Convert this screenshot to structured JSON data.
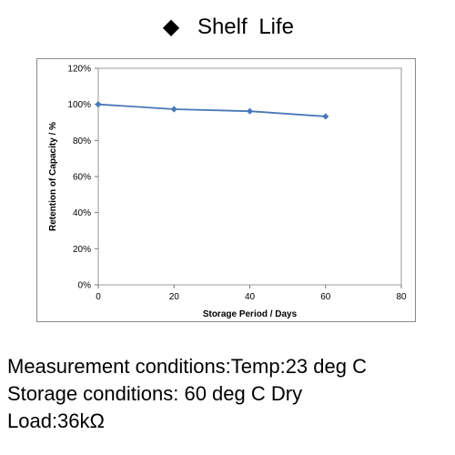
{
  "header": {
    "bullet": "◆",
    "title": "Shelf  Life"
  },
  "chart_data": {
    "type": "line",
    "title": "",
    "xlabel": "Storage Period / Days",
    "ylabel": "Retention of Capacity / %",
    "x": [
      0,
      20,
      40,
      60
    ],
    "series": [
      {
        "values": [
          100,
          97.3,
          96.2,
          93.3
        ],
        "color": "#4a78b8"
      }
    ],
    "xlim": [
      0,
      80
    ],
    "ylim": [
      0,
      120
    ],
    "x_ticks": [
      "0",
      "20",
      "40",
      "60",
      "80"
    ],
    "y_ticks": [
      "0%",
      "20%",
      "40%",
      "60%",
      "80%",
      "100%",
      "120%"
    ],
    "grid": false,
    "legend": "none"
  },
  "notes": {
    "line1": "Measurement conditions:Temp:23 deg C",
    "line2": "Storage conditions: 60 deg C Dry",
    "line3": "Load:36kΩ"
  }
}
